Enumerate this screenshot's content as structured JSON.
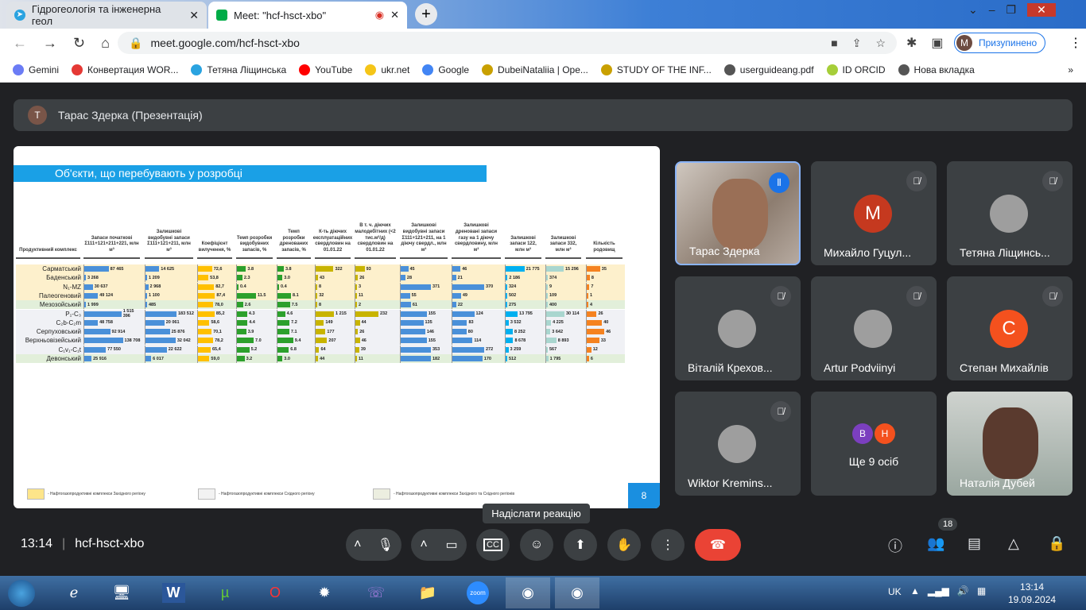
{
  "browser": {
    "tabs": [
      {
        "title": "Гідрогеологія та інженерна геол",
        "icon": "telegram-icon"
      },
      {
        "title": "Meet: \"hcf-hsct-xbo\"",
        "icon": "meet-icon"
      }
    ],
    "url": "meet.google.com/hcf-hsct-xbo",
    "profile_initial": "M",
    "profile_status": "Призупинено",
    "bookmarks": [
      {
        "label": "Gemini",
        "color": "#6b7cf5"
      },
      {
        "label": "Конвертация WOR...",
        "color": "#e53935"
      },
      {
        "label": "Тетяна Ліщинська",
        "color": "#2aa3e0"
      },
      {
        "label": "YouTube",
        "color": "#ff0000"
      },
      {
        "label": "ukr.net",
        "color": "#f5c518"
      },
      {
        "label": "Google",
        "color": "#4285f4"
      },
      {
        "label": "DubeiNataliia | Ope...",
        "color": "#c9a000"
      },
      {
        "label": "STUDY OF THE INF...",
        "color": "#c9a000"
      },
      {
        "label": "userguideang.pdf",
        "color": "#555555"
      },
      {
        "label": "ID ORCID",
        "color": "#a6ce39"
      },
      {
        "label": "Нова вкладка",
        "color": "#555555"
      }
    ]
  },
  "presenter": {
    "initial": "Т",
    "label": "Тарас Здерка (Презентація)"
  },
  "slide": {
    "title": "Об'єкти, що перебувають у розробці",
    "page": "8",
    "headers": [
      "Продуктивний комплекс",
      "Запаси початкові Σ111+121+211+221, млн м³",
      "Залишкові видобувні запаси Σ111+121+211, млн м³",
      "Коефіцієнт вилучення, %",
      "Темп розробки видобувних запасів, %",
      "Темп розробки дренованих запасів, %",
      "К-ть діючих експлуатаційних свердловин на 01.01.22",
      "В т. ч. діючих малодебітних (<2 тис.м³/д) свердловин на 01.01.22",
      "Залишкові видобувні запаси Σ111+121+211, на 1 діючу свердл., млн м³",
      "Залишкові дреновані запаси газу на 1 діючу свердловину, млн м³",
      "Залишкові запаси 122, млн м³",
      "Залишкові запаси 332, млн м³",
      "Кількість родовищ"
    ],
    "colors": [
      "#4a90d9",
      "#4a90d9",
      "#ffc000",
      "#2ca02c",
      "#2ca02c",
      "#c8b400",
      "#c8b400",
      "#4a90d9",
      "#4a90d9",
      "#00b0f0",
      "#a9d6cf",
      "#f58220"
    ],
    "rows": [
      {
        "name": "Сарматський",
        "region": "west",
        "v": [
          "87 465",
          "14 625",
          "72,6",
          "3.8",
          "3.8",
          "322",
          "93",
          "45",
          "46",
          "21 775",
          "15 296",
          "35"
        ]
      },
      {
        "name": "Баденський",
        "region": "west",
        "v": [
          "3 268",
          "1 209",
          "53,8",
          "2.3",
          "3.0",
          "43",
          "26",
          "28",
          "21",
          "2 186",
          "374",
          "8"
        ]
      },
      {
        "name": "N₁-MZ",
        "region": "west",
        "v": [
          "30 637",
          "2 968",
          "82,7",
          "0.4",
          "0.4",
          "8",
          "3",
          "371",
          "370",
          "324",
          "9",
          "7"
        ]
      },
      {
        "name": "Палеогеновий",
        "region": "west",
        "v": [
          "49 124",
          "1 100",
          "87,4",
          "11.5",
          "8.1",
          "32",
          "11",
          "55",
          "49",
          "502",
          "109",
          "1"
        ]
      },
      {
        "name": "Мезозойський",
        "region": "both",
        "v": [
          "1 999",
          "485",
          "78,0",
          "2.6",
          "7.5",
          "8",
          "2",
          "61",
          "22",
          "275",
          "400",
          "4"
        ]
      },
      {
        "name": "P₁-C₃",
        "region": "east",
        "v": [
          "1 515 396",
          "183 512",
          "85,2",
          "4.3",
          "4.6",
          "1 215",
          "232",
          "155",
          "124",
          "13 795",
          "30 114",
          "26"
        ]
      },
      {
        "name": "C₂b-C₂m",
        "region": "east",
        "v": [
          "48 758",
          "20 061",
          "58,6",
          "4.4",
          "7.2",
          "149",
          "44",
          "135",
          "83",
          "3 532",
          "4 225",
          "40"
        ]
      },
      {
        "name": "Серпуховський",
        "region": "east",
        "v": [
          "92 914",
          "25 876",
          "70,1",
          "3.9",
          "7.1",
          "177",
          "26",
          "146",
          "80",
          "8 252",
          "3 642",
          "46"
        ]
      },
      {
        "name": "Верхньовізейський",
        "region": "east",
        "v": [
          "138 708",
          "32 042",
          "78,2",
          "7.0",
          "9.4",
          "207",
          "46",
          "155",
          "114",
          "8 678",
          "8 893",
          "33"
        ]
      },
      {
        "name": "C₁v₁-C₁t",
        "region": "east",
        "v": [
          "77 550",
          "22 622",
          "65,4",
          "5.2",
          "6.8",
          "64",
          "39",
          "353",
          "272",
          "3 259",
          "567",
          "12"
        ]
      },
      {
        "name": "Девонський",
        "region": "both",
        "v": [
          "25 916",
          "6 017",
          "59,0",
          "3.2",
          "3.0",
          "44",
          "11",
          "182",
          "170",
          "512",
          "1 795",
          "6"
        ]
      }
    ],
    "region_colors": {
      "west": "#fdf0cc",
      "both": "#e2efda",
      "east": "#f0f1f5"
    },
    "legend": [
      "- Нафтогазопродуктивні комплекси Західного регіону",
      "- Нафтогазопродуктивні комплекси Східного регіону",
      "- Нафтогазопродуктивні комплекси Західного та Східного регіонів"
    ]
  },
  "participants": [
    {
      "name": "Тарас Здерка",
      "type": "video",
      "speaking": true
    },
    {
      "name": "Михайло Гуцул...",
      "initial": "М",
      "color": "#c5391f"
    },
    {
      "name": "Тетяна Ліщинсь...",
      "type": "photo"
    },
    {
      "name": "Віталій Крехов...",
      "type": "photo"
    },
    {
      "name": "Artur Podviinyi",
      "type": "photo"
    },
    {
      "name": "Степан Михайлів",
      "initial": "С",
      "color": "#f4511e"
    },
    {
      "name": "Wiktor Kremins...",
      "type": "photo"
    },
    {
      "name": "Ще 9 осіб",
      "initials": [
        "В",
        "Н"
      ]
    },
    {
      "name": "Наталія Дубей",
      "type": "video"
    }
  ],
  "meeting": {
    "time": "13:14",
    "code": "hcf-hsct-xbo",
    "tooltip": "Надіслати реакцію",
    "people_count": "18"
  },
  "taskbar": {
    "lang": "UK",
    "time": "13:14",
    "date": "19.09.2024"
  }
}
